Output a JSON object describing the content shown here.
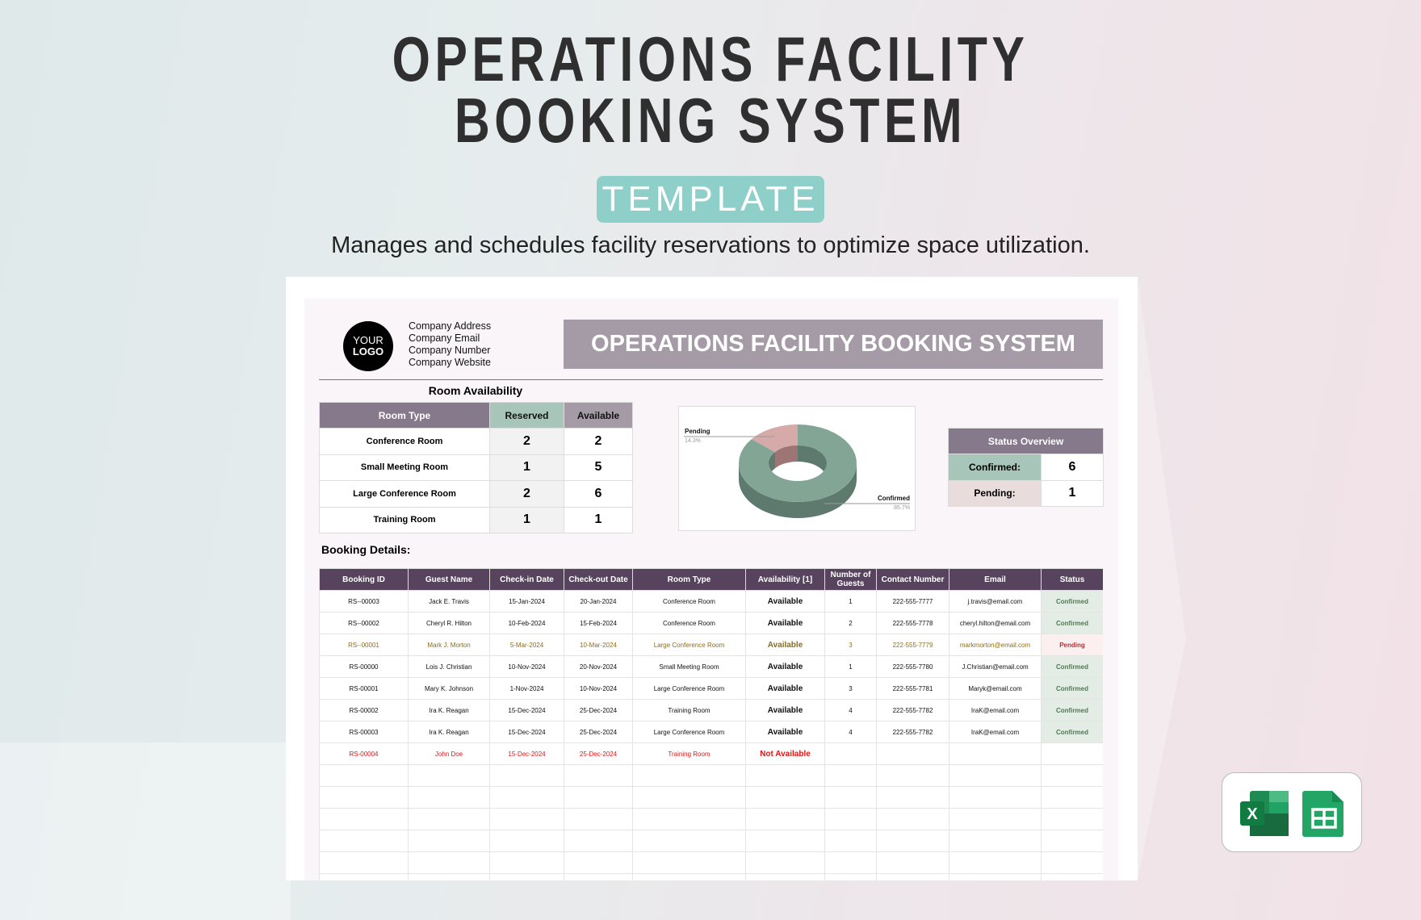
{
  "hero": {
    "title_line1": "OPERATIONS FACILITY",
    "title_line2": "BOOKING SYSTEM",
    "badge": "TEMPLATE",
    "subtitle": "Manages and schedules facility reservations to optimize space utilization."
  },
  "company": {
    "logo_line1": "YOUR",
    "logo_line2": "LOGO",
    "address": "Company Address",
    "email": "Company Email",
    "number": "Company Number",
    "website": "Company Website"
  },
  "banner_title": "OPERATIONS FACILITY BOOKING SYSTEM",
  "room_availability": {
    "title": "Room Availability",
    "headers": [
      "Room Type",
      "Reserved",
      "Available"
    ],
    "rows": [
      [
        "Conference Room",
        "2",
        "2"
      ],
      [
        "Small Meeting Room",
        "1",
        "5"
      ],
      [
        "Large Conference Room",
        "2",
        "6"
      ],
      [
        "Training Room",
        "1",
        "1"
      ]
    ]
  },
  "chart_data": {
    "type": "pie",
    "style": "3d-donut",
    "slices": [
      {
        "label": "Pending",
        "value": 14.3,
        "display": "14.3%",
        "color": "#d6aaa8"
      },
      {
        "label": "Confirmed",
        "value": 85.7,
        "display": "85.7%",
        "color": "#82a595"
      }
    ]
  },
  "status_overview": {
    "title": "Status Overview",
    "rows": [
      {
        "label": "Confirmed:",
        "value": "6",
        "color": "#a8c5b9"
      },
      {
        "label": "Pending:",
        "value": "1",
        "color": "#e8dcdd"
      }
    ]
  },
  "booking": {
    "title": "Booking Details:",
    "headers": [
      "Booking ID",
      "Guest Name",
      "Check-in Date",
      "Check-out Date",
      "Room Type",
      "Availability [1]",
      "Number of Guests",
      "Contact Number",
      "Email",
      "Status"
    ],
    "rows": [
      [
        "RS--00003",
        "Jack E. Travis",
        "15-Jan-2024",
        "20-Jan-2024",
        "Conference Room",
        "Available",
        "1",
        "222-555-7777",
        "j.travis@email.com",
        "Confirmed"
      ],
      [
        "RS--00002",
        "Cheryl R. Hilton",
        "10-Feb-2024",
        "15-Feb-2024",
        "Conference Room",
        "Available",
        "2",
        "222-555-7778",
        "cheryl.hilton@email.com",
        "Confirmed"
      ],
      [
        "RS--00001",
        "Mark J. Morton",
        "5-Mar-2024",
        "10-Mar-2024",
        "Large Conference Room",
        "Available",
        "3",
        "222-555-7779",
        "markmorton@email.com",
        "Pending"
      ],
      [
        "RS-00000",
        "Lois J. Christian",
        "10-Nov-2024",
        "20-Nov-2024",
        "Small Meeting Room",
        "Available",
        "1",
        "222-555-7780",
        "J.Christian@email.com",
        "Confirmed"
      ],
      [
        "RS-00001",
        "Mary K. Johnson",
        "1-Nov-2024",
        "10-Nov-2024",
        "Large Conference Room",
        "Available",
        "3",
        "222-555-7781",
        "Maryk@email.com",
        "Confirmed"
      ],
      [
        "RS-00002",
        "Ira K. Reagan",
        "15-Dec-2024",
        "25-Dec-2024",
        "Training Room",
        "Available",
        "4",
        "222-555-7782",
        "IraK@email.com",
        "Confirmed"
      ],
      [
        "RS-00003",
        "Ira K. Reagan",
        "15-Dec-2024",
        "25-Dec-2024",
        "Large Conference Room",
        "Available",
        "4",
        "222-555-7782",
        "IraK@email.com",
        "Confirmed"
      ],
      [
        "RS-00004",
        "John Doe",
        "15-Dec-2024",
        "25-Dec-2024",
        "Training Room",
        "Not Available",
        "",
        "",
        "",
        ""
      ]
    ],
    "row_text_colors": [
      "#111",
      "#111",
      "#8a6d1a",
      "#111",
      "#111",
      "#111",
      "#111",
      "#e01515"
    ]
  },
  "colors": {
    "available": "#5aa05a",
    "not_available": "#e01515",
    "confirmed_bg": "#e3ede6",
    "pending_bg": "#fcefef"
  },
  "app_icons": [
    "excel-icon",
    "google-sheets-icon"
  ]
}
